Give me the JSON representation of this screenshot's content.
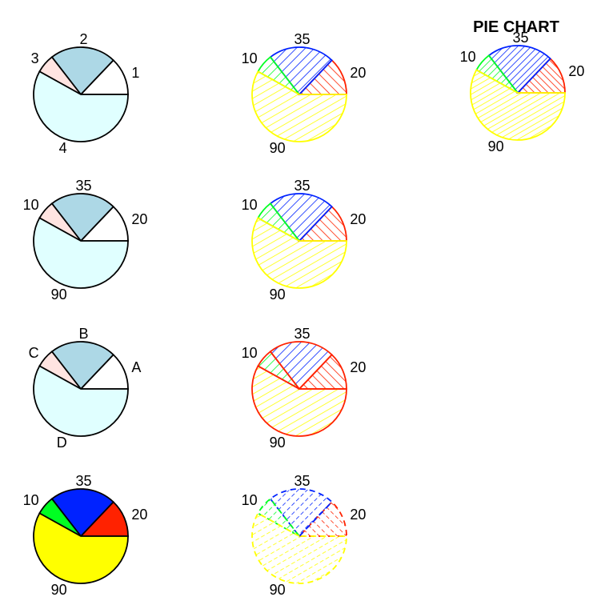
{
  "title": "PIE CHART",
  "colors": {
    "white": "#ffffff",
    "lightblue": "#add8e6",
    "mistyrose": "#ffe4e1",
    "lightcyan": "#e0ffff",
    "red": "#ff2200",
    "blue": "#0022ff",
    "green": "#00ff22",
    "yellow": "#ffff00",
    "black": "#000000"
  },
  "chart_data": [
    {
      "type": "pie",
      "values": [
        20,
        35,
        10,
        90
      ],
      "labels": [
        "1",
        "2",
        "3",
        "4"
      ],
      "fill": [
        "white",
        "lightblue",
        "mistyrose",
        "lightcyan"
      ],
      "style": "solid"
    },
    {
      "type": "pie",
      "values": [
        20,
        35,
        10,
        90
      ],
      "labels": [
        "20",
        "35",
        "10",
        "90"
      ],
      "fill": [
        "red",
        "blue",
        "green",
        "yellow"
      ],
      "border": "series",
      "style": "hatched"
    },
    {
      "type": "pie",
      "values": [
        20,
        35,
        10,
        90
      ],
      "labels": [
        "20",
        "35",
        "10",
        "90"
      ],
      "fill": [
        "red",
        "blue",
        "green",
        "yellow"
      ],
      "border": "series",
      "style": "hatched-dense",
      "title": "PIE CHART"
    },
    {
      "type": "pie",
      "values": [
        20,
        35,
        10,
        90
      ],
      "labels": [
        "20",
        "35",
        "10",
        "90"
      ],
      "fill": [
        "white",
        "lightblue",
        "mistyrose",
        "lightcyan"
      ],
      "style": "solid"
    },
    {
      "type": "pie",
      "values": [
        20,
        35,
        10,
        90
      ],
      "labels": [
        "20",
        "35",
        "10",
        "90"
      ],
      "fill": [
        "red",
        "blue",
        "green",
        "yellow"
      ],
      "border": "series",
      "style": "hatched"
    },
    {
      "type": "pie",
      "values": [
        20,
        35,
        10,
        90
      ],
      "labels": [
        "A",
        "B",
        "C",
        "D"
      ],
      "fill": [
        "white",
        "lightblue",
        "mistyrose",
        "lightcyan"
      ],
      "style": "solid"
    },
    {
      "type": "pie",
      "values": [
        20,
        35,
        10,
        90
      ],
      "labels": [
        "20",
        "35",
        "10",
        "90"
      ],
      "fill": [
        "red",
        "blue",
        "green",
        "yellow"
      ],
      "border": "red",
      "style": "hatched"
    },
    {
      "type": "pie",
      "values": [
        20,
        35,
        10,
        90
      ],
      "labels": [
        "20",
        "35",
        "10",
        "90"
      ],
      "fill": [
        "red",
        "blue",
        "green",
        "yellow"
      ],
      "style": "solid-filled"
    },
    {
      "type": "pie",
      "values": [
        20,
        35,
        10,
        90
      ],
      "labels": [
        "20",
        "35",
        "10",
        "90"
      ],
      "fill": [
        "red",
        "blue",
        "green",
        "yellow"
      ],
      "border": "series-dashed",
      "style": "hatched"
    }
  ]
}
